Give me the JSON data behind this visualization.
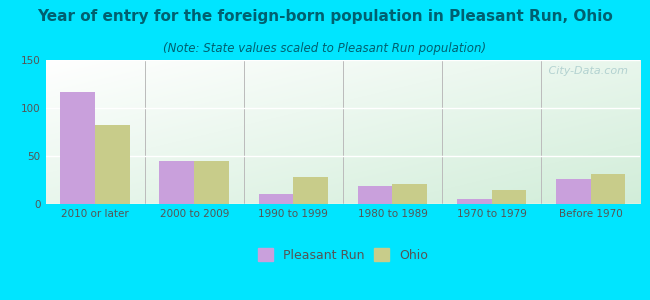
{
  "title": "Year of entry for the foreign-born population in Pleasant Run, Ohio",
  "subtitle": "(Note: State values scaled to Pleasant Run population)",
  "categories": [
    "2010 or later",
    "2000 to 2009",
    "1990 to 1999",
    "1980 to 1989",
    "1970 to 1979",
    "Before 1970"
  ],
  "pleasant_run": [
    117,
    45,
    10,
    19,
    5,
    26
  ],
  "ohio": [
    82,
    45,
    28,
    21,
    15,
    31
  ],
  "pleasant_run_color": "#c9a0dc",
  "ohio_color": "#c8cc8a",
  "background_color": "#00e5ff",
  "plot_bg_topleft": "#ffffff",
  "plot_bg_bottomright": "#d0ecd8",
  "ylim": [
    0,
    150
  ],
  "yticks": [
    0,
    50,
    100,
    150
  ],
  "bar_width": 0.35,
  "title_fontsize": 11,
  "subtitle_fontsize": 8.5,
  "tick_fontsize": 7.5,
  "legend_fontsize": 9,
  "title_color": "#006070",
  "subtitle_color": "#006070",
  "tick_color": "#555555",
  "watermark": "   City-Data.com",
  "watermark_color": "#aacccc"
}
